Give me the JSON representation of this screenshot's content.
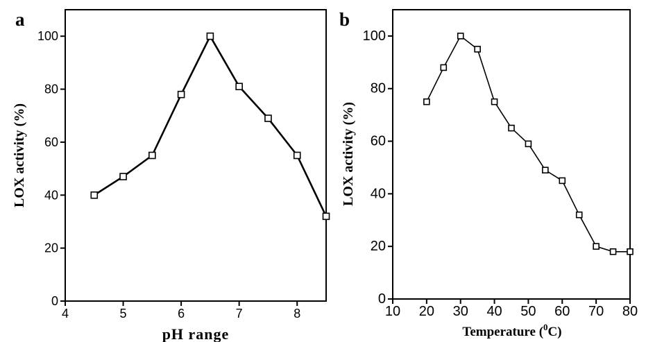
{
  "chart_data": [
    {
      "type": "line",
      "panel_label": "a",
      "xlabel": "pH range",
      "ylabel": "LOX activity (%)",
      "xlim": [
        4,
        8.5
      ],
      "ylim": [
        0,
        110
      ],
      "xticks": [
        "4",
        "5",
        "6",
        "7",
        "8"
      ],
      "yticks": [
        "0",
        "20",
        "40",
        "60",
        "80",
        "100"
      ],
      "grid": false,
      "marker": "open-square",
      "series": [
        {
          "x": [
            4.5,
            5.0,
            5.5,
            6.0,
            6.5,
            7.0,
            7.5,
            8.0,
            8.5
          ],
          "y": [
            40,
            47,
            55,
            78,
            100,
            81,
            69,
            55,
            32
          ]
        }
      ]
    },
    {
      "type": "line",
      "panel_label": "b",
      "xlabel": "Temperature (",
      "xlabel_sup": "0",
      "xlabel_end": "C)",
      "ylabel": "LOX activity (%)",
      "xlim": [
        10,
        80
      ],
      "ylim": [
        0,
        110
      ],
      "xticks": [
        "10",
        "20",
        "30",
        "40",
        "50",
        "60",
        "70",
        "80"
      ],
      "yticks": [
        "0",
        "20",
        "40",
        "60",
        "80",
        "100"
      ],
      "grid": false,
      "marker": "open-square",
      "series": [
        {
          "x": [
            20,
            25,
            30,
            35,
            40,
            45,
            50,
            55,
            60,
            65,
            70,
            75,
            80
          ],
          "y": [
            75,
            88,
            100,
            95,
            75,
            65,
            59,
            49,
            45,
            32,
            20,
            18,
            18
          ]
        }
      ]
    }
  ]
}
